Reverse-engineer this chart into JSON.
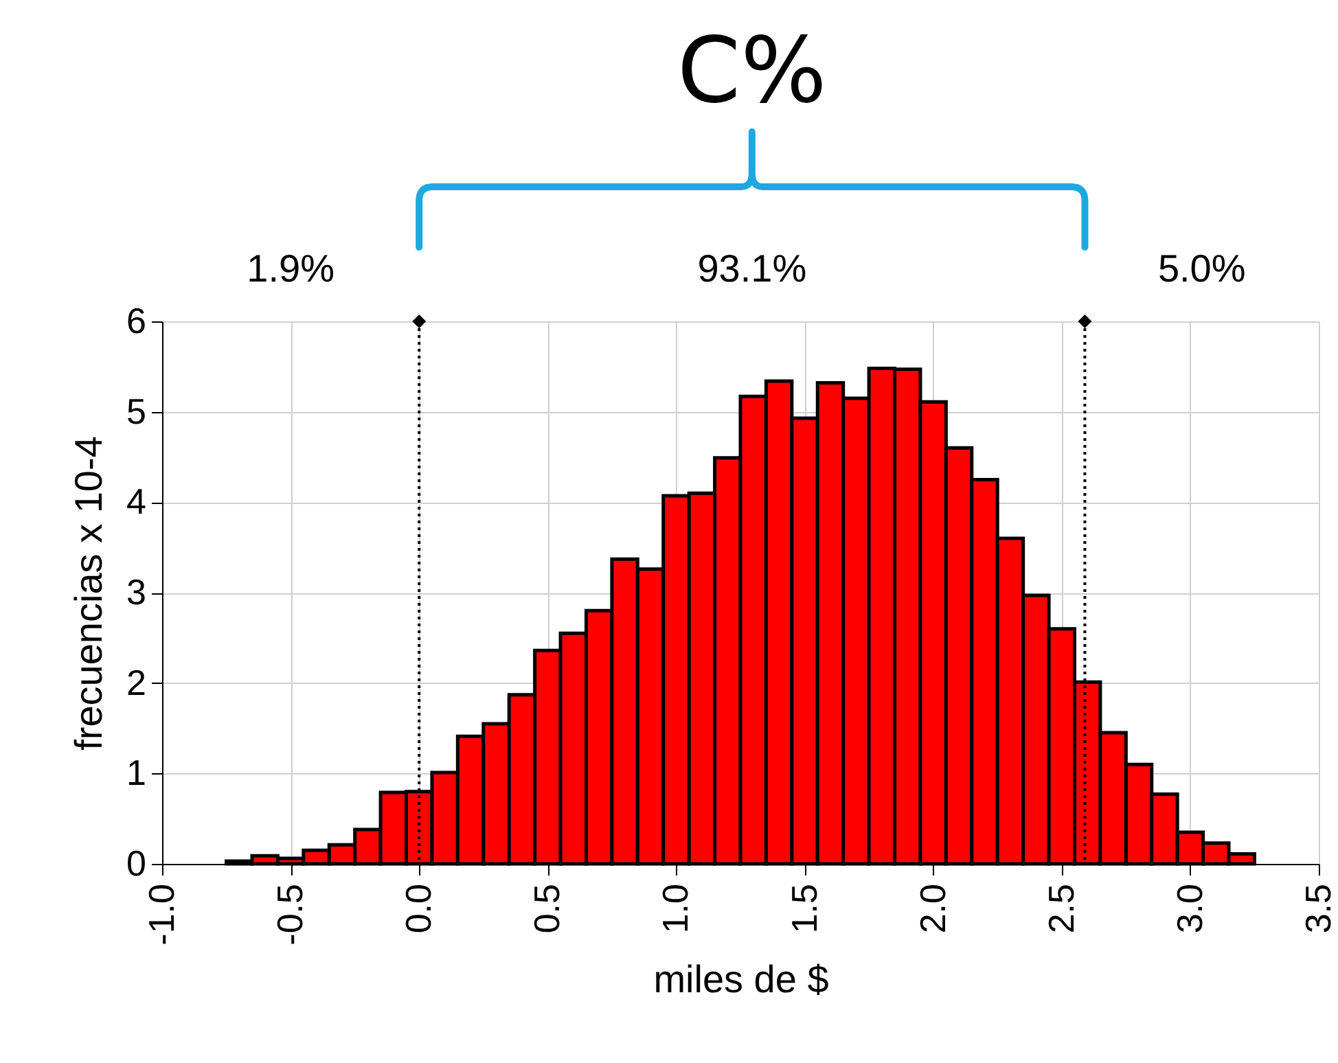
{
  "chart_data": {
    "type": "histogram",
    "bins": [
      -0.75,
      -0.65,
      -0.55,
      -0.45,
      -0.35,
      -0.25,
      -0.15,
      -0.05,
      0.05,
      0.15,
      0.25,
      0.35,
      0.45,
      0.55,
      0.65,
      0.75,
      0.85,
      0.95,
      1.05,
      1.15,
      1.25,
      1.35,
      1.45,
      1.55,
      1.65,
      1.75,
      1.85,
      1.95,
      2.05,
      2.15,
      2.25,
      2.35,
      2.45,
      2.55,
      2.65,
      2.75,
      2.85,
      2.95,
      3.05,
      3.15,
      3.25
    ],
    "values": [
      0.03,
      0.09,
      0.06,
      0.15,
      0.21,
      0.38,
      0.79,
      0.8,
      1.01,
      1.41,
      1.55,
      1.87,
      2.36,
      2.55,
      2.8,
      3.37,
      3.26,
      4.07,
      4.1,
      4.49,
      5.17,
      5.34,
      4.93,
      5.32,
      5.15,
      5.48,
      5.47,
      5.11,
      4.6,
      4.25,
      3.6,
      2.97,
      2.6,
      2.01,
      1.45,
      1.1,
      0.77,
      0.35,
      0.23,
      0.11
    ],
    "color": "#ff0000",
    "xlabel": "miles de $",
    "ylabel": "frecuencias x 10-4",
    "xlim": [
      -1.0,
      3.5
    ],
    "xticks": [
      {
        "value": -1,
        "label": "-1.0"
      },
      {
        "value": -0.5,
        "label": "-0.5"
      },
      {
        "value": 0,
        "label": "0.0"
      },
      {
        "value": 0.5,
        "label": "0.5"
      },
      {
        "value": 1,
        "label": "1.0"
      },
      {
        "value": 1.5,
        "label": "1.5"
      },
      {
        "value": 2,
        "label": "2.0"
      },
      {
        "value": 2.5,
        "label": "2.5"
      },
      {
        "value": 3,
        "label": "3.0"
      },
      {
        "value": 3.5,
        "label": "3.5"
      }
    ],
    "ylim": [
      0,
      6
    ],
    "yticks": [
      0,
      1,
      2,
      3,
      4,
      5,
      6
    ],
    "grid": true,
    "ref_lines": [
      {
        "axis": "x",
        "value": 0.0,
        "line_style": "dotted",
        "color": "#000000"
      },
      {
        "axis": "x",
        "value": 2.59,
        "line_style": "dotted",
        "color": "#000000"
      }
    ],
    "annotations": [
      "C%",
      "1.9%",
      "93.1%",
      "5.0%"
    ]
  }
}
